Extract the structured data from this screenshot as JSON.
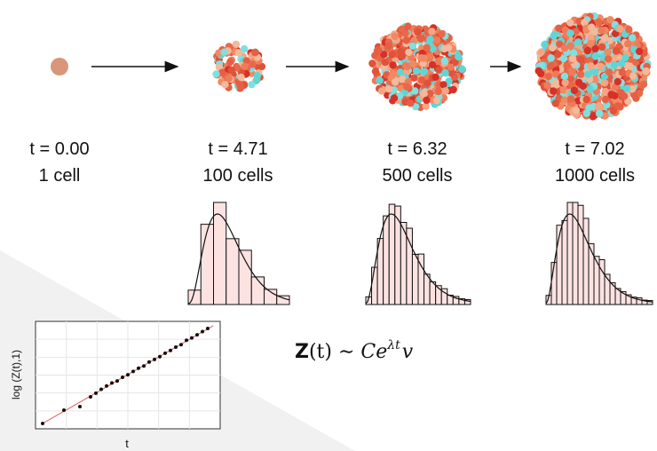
{
  "stages": [
    {
      "time": "t = 0.00",
      "cells": "1 cell"
    },
    {
      "time": "t = 4.71",
      "cells": "100 cells"
    },
    {
      "time": "t = 6.32",
      "cells": "500 cells"
    },
    {
      "time": "t = 7.02",
      "cells": "1000 cells"
    }
  ],
  "formula": {
    "z": "Z",
    "lhs": "(t) ∼ ",
    "c": "Ce",
    "exp": "λt",
    "v": "v"
  },
  "plot": {
    "x_label": "t",
    "y_label": "log (Z(t),1)"
  }
}
